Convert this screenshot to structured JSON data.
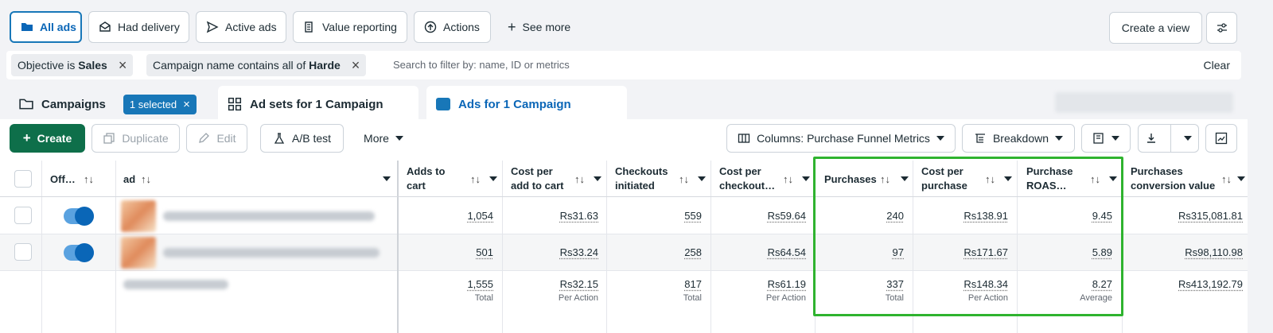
{
  "view_buttons": [
    {
      "label": "All ads",
      "icon": "folder-icon",
      "active": true
    },
    {
      "label": "Had delivery",
      "icon": "envelope-icon"
    },
    {
      "label": "Active ads",
      "icon": "send-icon"
    },
    {
      "label": "Value reporting",
      "icon": "bank-icon"
    },
    {
      "label": "Actions",
      "icon": "arrow-up-circle-icon"
    }
  ],
  "see_more": "See more",
  "create_view": "Create a view",
  "filters": {
    "chip1_prefix": "Objective is ",
    "chip1_value": "Sales",
    "chip2_prefix": "Campaign name contains all of ",
    "chip2_value": "Harde",
    "search_placeholder": "Search to filter by: name, ID or metrics",
    "clear": "Clear"
  },
  "tabs": {
    "campaigns": "Campaigns",
    "selected": "1 selected",
    "adsets": "Ad sets for 1 Campaign",
    "ads": "Ads for 1 Campaign"
  },
  "toolbar": {
    "create": "Create",
    "duplicate": "Duplicate",
    "edit": "Edit",
    "abtest": "A/B test",
    "more": "More",
    "columns": "Columns: Purchase Funnel Metrics",
    "breakdown": "Breakdown"
  },
  "table": {
    "headers": {
      "off": "Off…",
      "ad": "ad",
      "adds_to_cart": [
        "Adds to",
        "cart"
      ],
      "cost_per_add": [
        "Cost per",
        "add to cart"
      ],
      "checkouts": [
        "Checkouts",
        "initiated"
      ],
      "cost_per_checkout": [
        "Cost per",
        "checkout…"
      ],
      "purchases": "Purchases",
      "cost_per_purchase": [
        "Cost per",
        "purchase"
      ],
      "roas": [
        "Purchase",
        "ROAS…"
      ],
      "conv_value": [
        "Purchases",
        "conversion value"
      ]
    },
    "rows": [
      {
        "adds": "1,054",
        "cost_add": "Rs31.63",
        "checkouts": "559",
        "cost_checkout": "Rs59.64",
        "purchases": "240",
        "cost_purchase": "Rs138.91",
        "roas": "9.45",
        "conv_value": "Rs315,081.81"
      },
      {
        "adds": "501",
        "cost_add": "Rs33.24",
        "checkouts": "258",
        "cost_checkout": "Rs64.54",
        "purchases": "97",
        "cost_purchase": "Rs171.67",
        "roas": "5.89",
        "conv_value": "Rs98,110.98"
      }
    ],
    "totals": {
      "adds": "1,555",
      "adds_sub": "Total",
      "cost_add": "Rs32.15",
      "cost_add_sub": "Per Action",
      "checkouts": "817",
      "checkouts_sub": "Total",
      "cost_checkout": "Rs61.19",
      "cost_checkout_sub": "Per Action",
      "purchases": "337",
      "purchases_sub": "Total",
      "cost_purchase": "Rs148.34",
      "cost_purchase_sub": "Per Action",
      "roas": "8.27",
      "roas_sub": "Average",
      "conv_value": "Rs413,192.79"
    }
  },
  "colors": {
    "accent": "#1877b8",
    "create_green": "#0e6f4a",
    "highlight_green": "#2fb32f"
  }
}
